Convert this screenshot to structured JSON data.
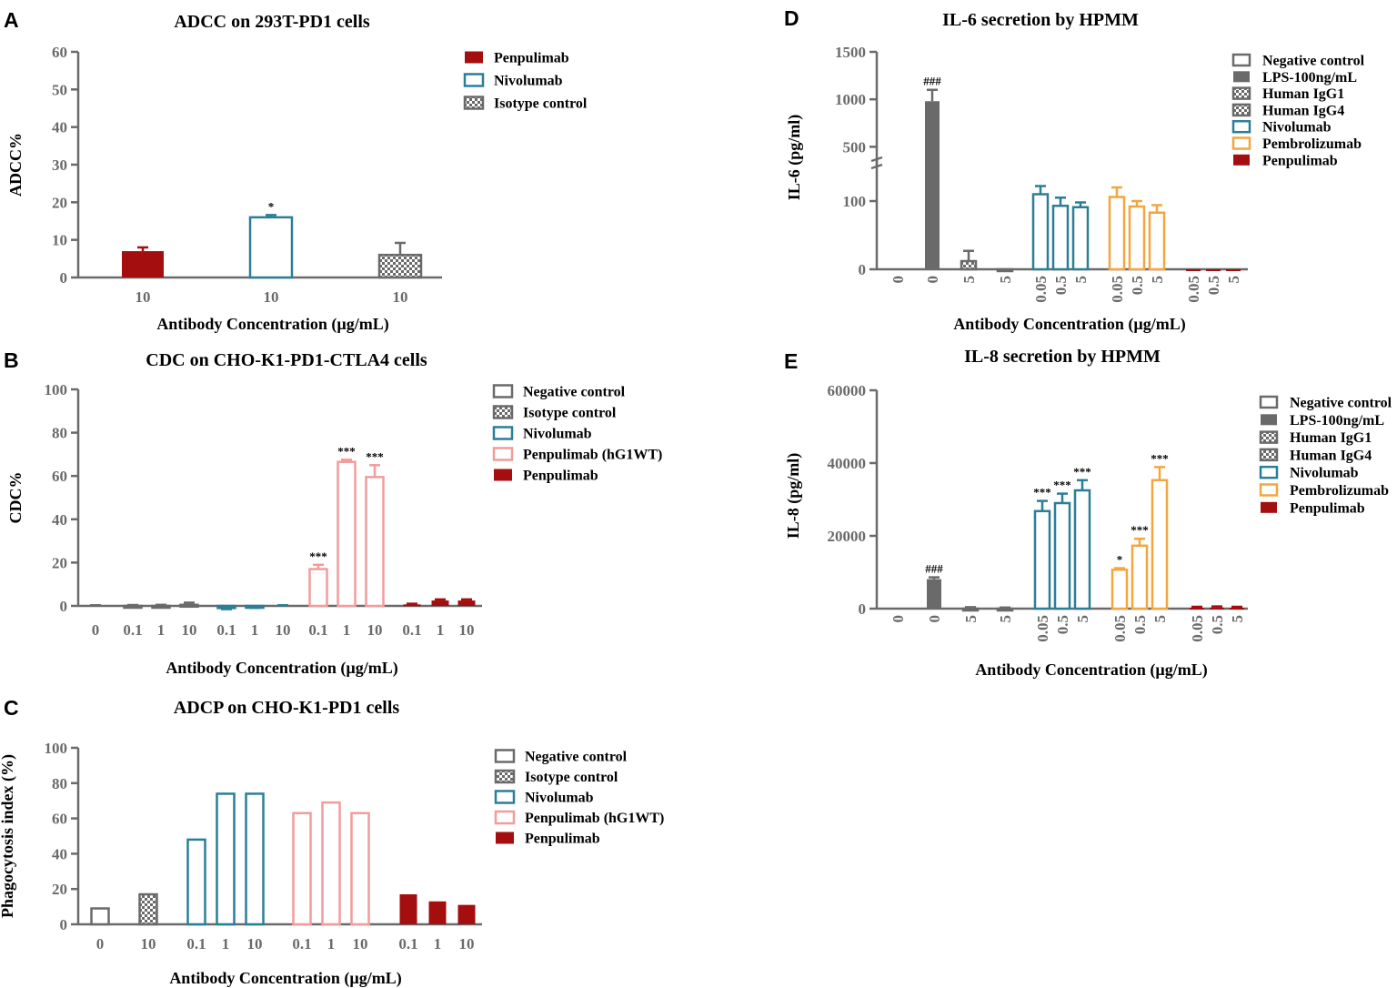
{
  "colors": {
    "gray": "#6a6a6a",
    "darkred": "#a50e0e",
    "teal": "#2a7f97",
    "pink": "#f29c9c",
    "orange": "#f2a63f",
    "axis": "#6a6a6a"
  },
  "chart_data": [
    {
      "id": "A",
      "panel": "A",
      "type": "bar",
      "title": "ADCC on 293T-PD1 cells",
      "xlabel": "Antibody Concentration (µg/mL)",
      "ylabel": "ADCC%",
      "ylim": [
        0,
        60
      ],
      "yticks": [
        0,
        10,
        20,
        30,
        40,
        50,
        60
      ],
      "legend": [
        {
          "label": "Penpulimab",
          "style": "solid",
          "color": "darkred"
        },
        {
          "label": "Nivolumab",
          "style": "outline",
          "color": "teal"
        },
        {
          "label": "Isotype control",
          "style": "checker",
          "color": "gray"
        }
      ],
      "groups": [
        {
          "series": "Penpulimab",
          "style": "solid",
          "color": "darkred",
          "bars": [
            {
              "x": "10",
              "value": 7,
              "err": 1
            }
          ]
        },
        {
          "series": "Nivolumab",
          "style": "outline",
          "color": "teal",
          "bars": [
            {
              "x": "10",
              "value": 16,
              "err": 0.6,
              "sig": "*"
            }
          ]
        },
        {
          "series": "Isotype control",
          "style": "checker",
          "color": "gray",
          "bars": [
            {
              "x": "10",
              "value": 6,
              "err": 3.2
            }
          ]
        }
      ]
    },
    {
      "id": "B",
      "panel": "B",
      "type": "bar",
      "title": "CDC on CHO-K1-PD1-CTLA4 cells",
      "xlabel": "Antibody  Concentration (µg/mL)",
      "ylabel": "CDC%",
      "ylim": [
        0,
        100
      ],
      "yticks": [
        0,
        20,
        40,
        60,
        80,
        100
      ],
      "legend": [
        {
          "label": "Negative control",
          "style": "outline",
          "color": "gray"
        },
        {
          "label": "Isotype control",
          "style": "checker",
          "color": "gray"
        },
        {
          "label": "Nivolumab",
          "style": "outline",
          "color": "teal"
        },
        {
          "label": "Penpulimab (hG1WT)",
          "style": "outline",
          "color": "pink"
        },
        {
          "label": "Penpulimab",
          "style": "solid",
          "color": "darkred"
        }
      ],
      "groups": [
        {
          "series": "Negative control",
          "style": "outline",
          "color": "gray",
          "bars": [
            {
              "x": "0",
              "value": 0,
              "err": 0.3
            }
          ]
        },
        {
          "series": "Isotype control",
          "style": "checker",
          "color": "gray",
          "bars": [
            {
              "x": "0.1",
              "value": 0,
              "err": 0.4
            },
            {
              "x": "1",
              "value": 0,
              "err": 0.5
            },
            {
              "x": "10",
              "value": 0.5,
              "err": 1
            }
          ]
        },
        {
          "series": "Nivolumab",
          "style": "outline",
          "color": "teal",
          "bars": [
            {
              "x": "0.1",
              "value": -1,
              "err": 0.5
            },
            {
              "x": "1",
              "value": -0.5,
              "err": 0.4
            },
            {
              "x": "10",
              "value": 0,
              "err": 0.3
            }
          ]
        },
        {
          "series": "Penpulimab (hG1WT)",
          "style": "outline",
          "color": "pink",
          "bars": [
            {
              "x": "0.1",
              "value": 17,
              "err": 2,
              "sig": "***"
            },
            {
              "x": "1",
              "value": 66.5,
              "err": 1,
              "sig": "***"
            },
            {
              "x": "10",
              "value": 59.5,
              "err": 5.5,
              "sig": "***"
            }
          ]
        },
        {
          "series": "Penpulimab",
          "style": "solid",
          "color": "darkred",
          "bars": [
            {
              "x": "0.1",
              "value": 0.7,
              "err": 0.3
            },
            {
              "x": "1",
              "value": 2.5,
              "err": 0.5
            },
            {
              "x": "10",
              "value": 2.5,
              "err": 0.5
            }
          ]
        }
      ]
    },
    {
      "id": "C",
      "panel": "C",
      "type": "bar",
      "title": "ADCP on CHO-K1-PD1 cells",
      "xlabel": "Antibody Concentration (µg/mL)",
      "ylabel": "Phagocytosis index (%)",
      "ylim": [
        0,
        100
      ],
      "yticks": [
        0,
        20,
        40,
        60,
        80,
        100
      ],
      "legend": [
        {
          "label": "Negative control",
          "style": "outline",
          "color": "gray"
        },
        {
          "label": "Isotype control",
          "style": "checker",
          "color": "gray"
        },
        {
          "label": "Nivolumab",
          "style": "outline",
          "color": "teal"
        },
        {
          "label": "Penpulimab (hG1WT)",
          "style": "outline",
          "color": "pink"
        },
        {
          "label": "Penpulimab",
          "style": "solid",
          "color": "darkred"
        }
      ],
      "groups": [
        {
          "series": "Negative control",
          "style": "outline",
          "color": "gray",
          "bars": [
            {
              "x": "0",
              "value": 9
            }
          ]
        },
        {
          "series": "Isotype control",
          "style": "checker",
          "color": "gray",
          "bars": [
            {
              "x": "10",
              "value": 17
            }
          ]
        },
        {
          "series": "Nivolumab",
          "style": "outline",
          "color": "teal",
          "bars": [
            {
              "x": "0.1",
              "value": 48
            },
            {
              "x": "1",
              "value": 74
            },
            {
              "x": "10",
              "value": 74
            }
          ]
        },
        {
          "series": "Penpulimab (hG1WT)",
          "style": "outline",
          "color": "pink",
          "bars": [
            {
              "x": "0.1",
              "value": 63
            },
            {
              "x": "1",
              "value": 69
            },
            {
              "x": "10",
              "value": 63
            }
          ]
        },
        {
          "series": "Penpulimab",
          "style": "solid",
          "color": "darkred",
          "bars": [
            {
              "x": "0.1",
              "value": 17
            },
            {
              "x": "1",
              "value": 13
            },
            {
              "x": "10",
              "value": 11
            }
          ]
        }
      ]
    },
    {
      "id": "D",
      "panel": "D",
      "type": "bar",
      "title": "IL-6 secretion by HPMM",
      "xlabel": "Antibody Concentration (µg/mL)",
      "ylabel": "IL-6 (pg/ml)",
      "ylim": [
        0,
        1500
      ],
      "y_axis_break": {
        "lower": [
          0,
          160
        ],
        "upper": [
          350,
          1500
        ]
      },
      "yticks": [
        0,
        100,
        500,
        1000,
        1500
      ],
      "legend": [
        {
          "label": "Negative control",
          "style": "outline",
          "color": "gray"
        },
        {
          "label": "LPS-100ng/mL",
          "style": "solid",
          "color": "gray"
        },
        {
          "label": "Human IgG1",
          "style": "checker",
          "color": "gray"
        },
        {
          "label": "Human IgG4",
          "style": "checker",
          "color": "gray"
        },
        {
          "label": "Nivolumab",
          "style": "outline",
          "color": "teal"
        },
        {
          "label": "Pembrolizumab",
          "style": "outline",
          "color": "orange"
        },
        {
          "label": "Penpulimab",
          "style": "solid",
          "color": "darkred"
        }
      ],
      "groups": [
        {
          "series": "Negative control",
          "style": "outline",
          "color": "gray",
          "bars": [
            {
              "x": "0",
              "value": 0
            }
          ]
        },
        {
          "series": "LPS-100ng/mL",
          "style": "solid",
          "color": "gray",
          "bars": [
            {
              "x": "0",
              "value": 980,
              "err": 120,
              "sig": "###"
            }
          ]
        },
        {
          "series": "Human IgG1",
          "style": "checker",
          "color": "gray",
          "bars": [
            {
              "x": "5",
              "value": 12,
              "err": 15
            }
          ]
        },
        {
          "series": "Human IgG4",
          "style": "checker",
          "color": "gray",
          "bars": [
            {
              "x": "5",
              "value": 0
            }
          ]
        },
        {
          "series": "Nivolumab",
          "style": "outline",
          "color": "teal",
          "bars": [
            {
              "x": "0.05",
              "value": 110,
              "err": 12
            },
            {
              "x": "0.5",
              "value": 93,
              "err": 12
            },
            {
              "x": "5",
              "value": 91,
              "err": 7
            }
          ]
        },
        {
          "series": "Pembrolizumab",
          "style": "outline",
          "color": "orange",
          "bars": [
            {
              "x": "0.05",
              "value": 106,
              "err": 14
            },
            {
              "x": "0.5",
              "value": 92,
              "err": 8
            },
            {
              "x": "5",
              "value": 83,
              "err": 11
            }
          ]
        },
        {
          "series": "Penpulimab",
          "style": "solid",
          "color": "darkred",
          "bars": [
            {
              "x": "0.05",
              "value": 0
            },
            {
              "x": "0.5",
              "value": 0
            },
            {
              "x": "5",
              "value": 0
            }
          ]
        }
      ]
    },
    {
      "id": "E",
      "panel": "E",
      "type": "bar",
      "title": "IL-8 secretion by HPMM",
      "xlabel": "Antibody Concentration (µg/mL)",
      "ylabel": "IL-8 (pg/ml)",
      "ylim": [
        0,
        60000
      ],
      "yticks": [
        0,
        20000,
        40000,
        60000
      ],
      "legend": [
        {
          "label": "Negative control",
          "style": "outline",
          "color": "gray"
        },
        {
          "label": "LPS-100ng/mL",
          "style": "solid",
          "color": "gray"
        },
        {
          "label": "Human IgG1",
          "style": "checker",
          "color": "gray"
        },
        {
          "label": "Human IgG4",
          "style": "checker",
          "color": "gray"
        },
        {
          "label": "Nivolumab",
          "style": "outline",
          "color": "teal"
        },
        {
          "label": "Pembrolizumab",
          "style": "outline",
          "color": "orange"
        },
        {
          "label": "Penpulimab",
          "style": "solid",
          "color": "darkred"
        }
      ],
      "groups": [
        {
          "series": "Negative control",
          "style": "outline",
          "color": "gray",
          "bars": [
            {
              "x": "0",
              "value": 0
            }
          ]
        },
        {
          "series": "LPS-100ng/mL",
          "style": "solid",
          "color": "gray",
          "bars": [
            {
              "x": "0",
              "value": 8100,
              "err": 500,
              "sig": "###"
            }
          ]
        },
        {
          "series": "Human IgG1",
          "style": "checker",
          "color": "gray",
          "bars": [
            {
              "x": "5",
              "value": 0,
              "err": 400
            }
          ]
        },
        {
          "series": "Human IgG4",
          "style": "checker",
          "color": "gray",
          "bars": [
            {
              "x": "5",
              "value": 0,
              "err": 300
            }
          ]
        },
        {
          "series": "Nivolumab",
          "style": "outline",
          "color": "teal",
          "bars": [
            {
              "x": "0.05",
              "value": 26800,
              "err": 2800,
              "sig": "***"
            },
            {
              "x": "0.5",
              "value": 29000,
              "err": 2600,
              "sig": "***"
            },
            {
              "x": "5",
              "value": 32500,
              "err": 2800,
              "sig": "***"
            }
          ]
        },
        {
          "series": "Pembrolizumab",
          "style": "outline",
          "color": "orange",
          "bars": [
            {
              "x": "0.05",
              "value": 10700,
              "err": 400,
              "sig": "*"
            },
            {
              "x": "0.5",
              "value": 17300,
              "err": 1900,
              "sig": "***"
            },
            {
              "x": "5",
              "value": 35300,
              "err": 3600,
              "sig": "***"
            }
          ]
        },
        {
          "series": "Penpulimab",
          "style": "solid",
          "color": "darkred",
          "bars": [
            {
              "x": "0.05",
              "value": 250,
              "err": 250
            },
            {
              "x": "0.5",
              "value": 300,
              "err": 300
            },
            {
              "x": "5",
              "value": 250,
              "err": 250
            }
          ]
        }
      ]
    }
  ]
}
